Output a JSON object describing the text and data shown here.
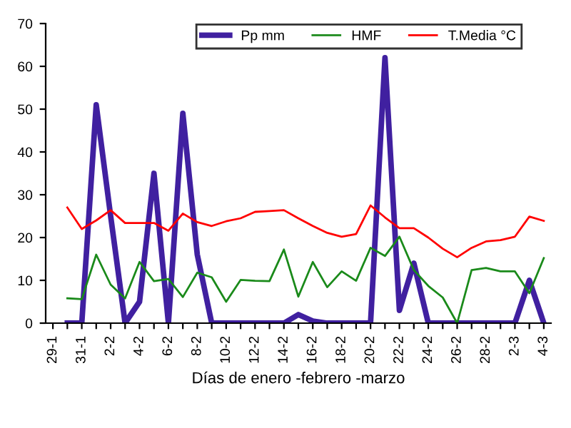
{
  "chart_data": {
    "type": "line",
    "xlabel": "Días de enero -febrero -marzo",
    "categories": [
      "29-1",
      null,
      "31-1",
      null,
      "2-2",
      null,
      "4-2",
      null,
      "6-2",
      null,
      "8-2",
      null,
      "10-2",
      null,
      "12-2",
      null,
      "14-2",
      null,
      "16-2",
      null,
      "18-2",
      null,
      "20-2",
      null,
      "22-2",
      null,
      "24-2",
      null,
      "26-2",
      null,
      "28-2",
      null,
      "2-3",
      null,
      "4-3"
    ],
    "series": [
      {
        "name": "Pp mm",
        "color": "#4020a0",
        "values": [
          null,
          0,
          0,
          51,
          25,
          0,
          5,
          35,
          0,
          49,
          16,
          0,
          0,
          0,
          0,
          0,
          0,
          2,
          0.5,
          0,
          0,
          0,
          0,
          62,
          3,
          14,
          0,
          0,
          0,
          0,
          0,
          0,
          0,
          10,
          0
        ]
      },
      {
        "name": "HMF",
        "color": "#1a8a1a",
        "values": [
          null,
          5.8,
          5.6,
          16,
          9,
          5.8,
          14.3,
          9.8,
          10.3,
          6.1,
          11.8,
          10.7,
          5,
          10.1,
          9.9,
          9.8,
          17.2,
          6.2,
          14.3,
          8.4,
          12.1,
          9.9,
          17.6,
          15.7,
          20.2,
          12.4,
          8.7,
          6,
          0,
          12.4,
          12.9,
          12.1,
          12.1,
          7,
          15.2
        ]
      },
      {
        "name": "T.Media °C",
        "color": "#ff0000",
        "values": [
          null,
          27,
          22,
          24,
          26.4,
          23.4,
          23.4,
          23.4,
          21.6,
          25.6,
          23.6,
          22.7,
          23.8,
          24.5,
          26,
          26.2,
          26.4,
          24.5,
          22.7,
          21.1,
          20.2,
          20.8,
          27.5,
          24.7,
          22.2,
          22.2,
          20,
          17.4,
          15.4,
          17.6,
          19.1,
          19.4,
          20.2,
          24.9,
          23.9
        ]
      }
    ],
    "ylim": [
      0,
      70
    ],
    "yticks": [
      0,
      10,
      20,
      30,
      40,
      50,
      60,
      70
    ],
    "grid": false,
    "legend": "top",
    "marker": "none",
    "line_style": "solid"
  }
}
